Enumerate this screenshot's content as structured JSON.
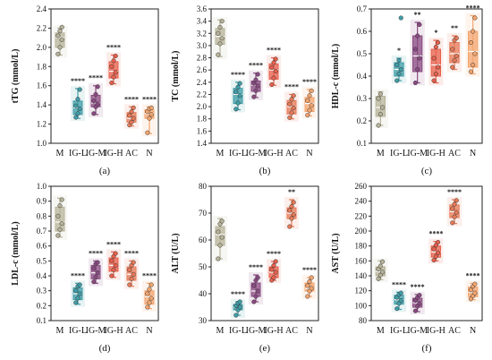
{
  "colors": {
    "M": "#b8b49a",
    "IG-L": "#3f9ea8",
    "IG-M": "#8a4a82",
    "IG-H": "#e8604c",
    "AC": "#e87a58",
    "N": "#f4a56e"
  },
  "chart_data": [
    {
      "type": "box",
      "panel_label": "(a)",
      "ylabel": "tTG (mmol/L)",
      "ylim": [
        1.0,
        2.4
      ],
      "yticks": [
        "1.0",
        "1.2",
        "1.4",
        "1.6",
        "1.8",
        "2.0",
        "2.2",
        "2.4"
      ],
      "categories": [
        "M",
        "IG-L",
        "IG-M",
        "IG-H",
        "AC",
        "N"
      ],
      "boxes": [
        {
          "min": 1.92,
          "q1": 2.0,
          "median": 2.1,
          "q3": 2.15,
          "max": 2.2,
          "points": [
            1.93,
            2.0,
            2.08,
            2.12,
            2.17,
            2.21
          ],
          "sig": ""
        },
        {
          "min": 1.26,
          "q1": 1.3,
          "median": 1.37,
          "q3": 1.44,
          "max": 1.57,
          "points": [
            1.27,
            1.31,
            1.36,
            1.39,
            1.46,
            1.56
          ],
          "sig": "****"
        },
        {
          "min": 1.3,
          "q1": 1.38,
          "median": 1.42,
          "q3": 1.5,
          "max": 1.6,
          "points": [
            1.31,
            1.38,
            1.41,
            1.44,
            1.51,
            1.59
          ],
          "sig": "****"
        },
        {
          "min": 1.62,
          "q1": 1.68,
          "median": 1.75,
          "q3": 1.85,
          "max": 1.92,
          "points": [
            1.63,
            1.69,
            1.74,
            1.8,
            1.86,
            1.91
          ],
          "sig": "****"
        },
        {
          "min": 1.18,
          "q1": 1.22,
          "median": 1.26,
          "q3": 1.32,
          "max": 1.38,
          "points": [
            1.19,
            1.22,
            1.26,
            1.29,
            1.33,
            1.37
          ],
          "sig": "****"
        },
        {
          "min": 1.1,
          "q1": 1.26,
          "median": 1.31,
          "q3": 1.35,
          "max": 1.38,
          "points": [
            1.11,
            1.26,
            1.3,
            1.33,
            1.36,
            1.37
          ],
          "sig": "****"
        }
      ]
    },
    {
      "type": "box",
      "panel_label": "(b)",
      "ylabel": "TC (mmol/L)",
      "ylim": [
        1.4,
        3.6
      ],
      "yticks": [
        "1.4",
        "1.6",
        "1.8",
        "2.0",
        "2.2",
        "2.4",
        "2.6",
        "2.8",
        "3.0",
        "3.2",
        "3.4",
        "3.6"
      ],
      "categories": [
        "M",
        "IG-L",
        "IG-M",
        "IG-H",
        "AC",
        "N"
      ],
      "boxes": [
        {
          "min": 2.82,
          "q1": 3.02,
          "median": 3.15,
          "q3": 3.28,
          "max": 3.42,
          "points": [
            2.85,
            3.03,
            3.12,
            3.2,
            3.3,
            3.4
          ],
          "sig": ""
        },
        {
          "min": 1.95,
          "q1": 2.05,
          "median": 2.2,
          "q3": 2.3,
          "max": 2.4,
          "points": [
            1.96,
            2.06,
            2.18,
            2.24,
            2.32,
            2.38
          ],
          "sig": "****"
        },
        {
          "min": 2.15,
          "q1": 2.25,
          "median": 2.35,
          "q3": 2.42,
          "max": 2.55,
          "points": [
            2.16,
            2.26,
            2.34,
            2.38,
            2.44,
            2.53
          ],
          "sig": "****"
        },
        {
          "min": 2.35,
          "q1": 2.45,
          "median": 2.6,
          "q3": 2.7,
          "max": 2.8,
          "points": [
            2.36,
            2.47,
            2.58,
            2.64,
            2.72,
            2.78
          ],
          "sig": "****"
        },
        {
          "min": 1.8,
          "q1": 1.88,
          "median": 2.0,
          "q3": 2.1,
          "max": 2.2,
          "points": [
            1.82,
            1.9,
            1.98,
            2.04,
            2.12,
            2.18
          ],
          "sig": "****"
        },
        {
          "min": 1.85,
          "q1": 1.92,
          "median": 2.05,
          "q3": 2.15,
          "max": 2.28,
          "points": [
            1.86,
            1.94,
            2.02,
            2.1,
            2.18,
            2.26
          ],
          "sig": "****"
        }
      ]
    },
    {
      "type": "box",
      "panel_label": "(c)",
      "ylabel": "HDL-c (mmol/L)",
      "ylim": [
        0.1,
        0.7
      ],
      "yticks": [
        "0.1",
        "0.2",
        "0.3",
        "0.4",
        "0.5",
        "0.6",
        "0.7"
      ],
      "categories": [
        "M",
        "IG-L",
        "IG-M",
        "IG-H",
        "AC",
        "N"
      ],
      "boxes": [
        {
          "min": 0.18,
          "q1": 0.22,
          "median": 0.26,
          "q3": 0.31,
          "max": 0.33,
          "points": [
            0.18,
            0.23,
            0.26,
            0.3,
            0.32
          ],
          "sig": ""
        },
        {
          "min": 0.38,
          "q1": 0.4,
          "median": 0.43,
          "q3": 0.46,
          "max": 0.48,
          "points": [
            0.38,
            0.41,
            0.43,
            0.45,
            0.47,
            0.66
          ],
          "sig": "*"
        },
        {
          "min": 0.37,
          "q1": 0.42,
          "median": 0.49,
          "q3": 0.58,
          "max": 0.64,
          "points": [
            0.37,
            0.43,
            0.48,
            0.52,
            0.58,
            0.63
          ],
          "sig": "**"
        },
        {
          "min": 0.37,
          "q1": 0.4,
          "median": 0.45,
          "q3": 0.52,
          "max": 0.56,
          "points": [
            0.38,
            0.41,
            0.44,
            0.48,
            0.53,
            0.55
          ],
          "sig": "*"
        },
        {
          "min": 0.43,
          "q1": 0.46,
          "median": 0.5,
          "q3": 0.55,
          "max": 0.58,
          "points": [
            0.44,
            0.47,
            0.49,
            0.52,
            0.56,
            0.57
          ],
          "sig": "**"
        },
        {
          "min": 0.41,
          "q1": 0.44,
          "median": 0.51,
          "q3": 0.6,
          "max": 0.67,
          "points": [
            0.42,
            0.45,
            0.5,
            0.55,
            0.6,
            0.66
          ],
          "sig": "****"
        }
      ]
    },
    {
      "type": "box",
      "panel_label": "(d)",
      "ylabel": "LDL-c (mmol/L)",
      "ylim": [
        0.1,
        1.0
      ],
      "yticks": [
        "0.1",
        "0.2",
        "0.3",
        "0.4",
        "0.5",
        "0.6",
        "0.7",
        "0.8",
        "0.9",
        "1.0"
      ],
      "categories": [
        "M",
        "IG-L",
        "IG-M",
        "IG-H",
        "AC",
        "N"
      ],
      "boxes": [
        {
          "min": 0.66,
          "q1": 0.7,
          "median": 0.76,
          "q3": 0.86,
          "max": 0.92,
          "points": [
            0.67,
            0.71,
            0.75,
            0.8,
            0.87,
            0.91
          ],
          "sig": ""
        },
        {
          "min": 0.21,
          "q1": 0.24,
          "median": 0.28,
          "q3": 0.32,
          "max": 0.35,
          "points": [
            0.22,
            0.25,
            0.28,
            0.3,
            0.33,
            0.34
          ],
          "sig": "****"
        },
        {
          "min": 0.35,
          "q1": 0.38,
          "median": 0.42,
          "q3": 0.47,
          "max": 0.5,
          "points": [
            0.36,
            0.39,
            0.42,
            0.45,
            0.48,
            0.49
          ],
          "sig": "****"
        },
        {
          "min": 0.39,
          "q1": 0.43,
          "median": 0.47,
          "q3": 0.52,
          "max": 0.56,
          "points": [
            0.4,
            0.44,
            0.47,
            0.5,
            0.53,
            0.55
          ],
          "sig": "****"
        },
        {
          "min": 0.33,
          "q1": 0.37,
          "median": 0.41,
          "q3": 0.46,
          "max": 0.5,
          "points": [
            0.34,
            0.38,
            0.41,
            0.44,
            0.47,
            0.49
          ],
          "sig": "****"
        },
        {
          "min": 0.18,
          "q1": 0.21,
          "median": 0.26,
          "q3": 0.3,
          "max": 0.35,
          "points": [
            0.19,
            0.22,
            0.25,
            0.28,
            0.31,
            0.34
          ],
          "sig": "****"
        }
      ]
    },
    {
      "type": "box",
      "panel_label": "(e)",
      "ylabel": "ALT (U/L)",
      "ylim": [
        30,
        80
      ],
      "yticks": [
        "30",
        "40",
        "50",
        "60",
        "70",
        "80"
      ],
      "categories": [
        "M",
        "IG-L",
        "IG-M",
        "IG-H",
        "AC",
        "N"
      ],
      "boxes": [
        {
          "min": 53,
          "q1": 58,
          "median": 62,
          "q3": 65,
          "max": 68,
          "points": [
            53,
            58,
            61,
            63,
            66,
            67
          ],
          "sig": ""
        },
        {
          "min": 32,
          "q1": 34,
          "median": 35,
          "q3": 36,
          "max": 37,
          "points": [
            32,
            34,
            35,
            35.5,
            36.5,
            37
          ],
          "sig": "****"
        },
        {
          "min": 37,
          "q1": 39,
          "median": 41,
          "q3": 44,
          "max": 47,
          "points": [
            37,
            39,
            41,
            43,
            45,
            46
          ],
          "sig": "****"
        },
        {
          "min": 45,
          "q1": 46,
          "median": 48,
          "q3": 50,
          "max": 52,
          "points": [
            45,
            46,
            48,
            49,
            50.5,
            52
          ],
          "sig": "****"
        },
        {
          "min": 65,
          "q1": 68,
          "median": 70,
          "q3": 72,
          "max": 75,
          "points": [
            65,
            68,
            69.5,
            71,
            72.5,
            74
          ],
          "sig": "**"
        },
        {
          "min": 39,
          "q1": 41,
          "median": 42,
          "q3": 44,
          "max": 46,
          "points": [
            39,
            41,
            42,
            43,
            44.5,
            46
          ],
          "sig": "****"
        }
      ]
    },
    {
      "type": "box",
      "panel_label": "(f)",
      "ylabel": "AST (U/L)",
      "ylim": [
        80,
        260
      ],
      "yticks": [
        "80",
        "100",
        "120",
        "140",
        "160",
        "180",
        "200",
        "220",
        "240",
        "260"
      ],
      "categories": [
        "M",
        "IG-L",
        "IG-M",
        "IG-H",
        "AC",
        "N"
      ],
      "boxes": [
        {
          "min": 135,
          "q1": 140,
          "median": 146,
          "q3": 152,
          "max": 160,
          "points": [
            136,
            141,
            145,
            149,
            153,
            159
          ],
          "sig": ""
        },
        {
          "min": 95,
          "q1": 102,
          "median": 108,
          "q3": 114,
          "max": 118,
          "points": [
            96,
            103,
            107,
            111,
            115,
            117
          ],
          "sig": "****"
        },
        {
          "min": 92,
          "q1": 98,
          "median": 104,
          "q3": 110,
          "max": 115,
          "points": [
            93,
            99,
            103,
            107,
            111,
            114
          ],
          "sig": "****"
        },
        {
          "min": 160,
          "q1": 165,
          "median": 172,
          "q3": 180,
          "max": 186,
          "points": [
            161,
            166,
            171,
            176,
            181,
            185
          ],
          "sig": "****"
        },
        {
          "min": 210,
          "q1": 218,
          "median": 226,
          "q3": 235,
          "max": 242,
          "points": [
            211,
            219,
            225,
            230,
            236,
            241
          ],
          "sig": "****"
        },
        {
          "min": 108,
          "q1": 112,
          "median": 118,
          "q3": 125,
          "max": 130,
          "points": [
            109,
            113,
            117,
            121,
            126,
            129
          ],
          "sig": "****"
        }
      ]
    }
  ]
}
